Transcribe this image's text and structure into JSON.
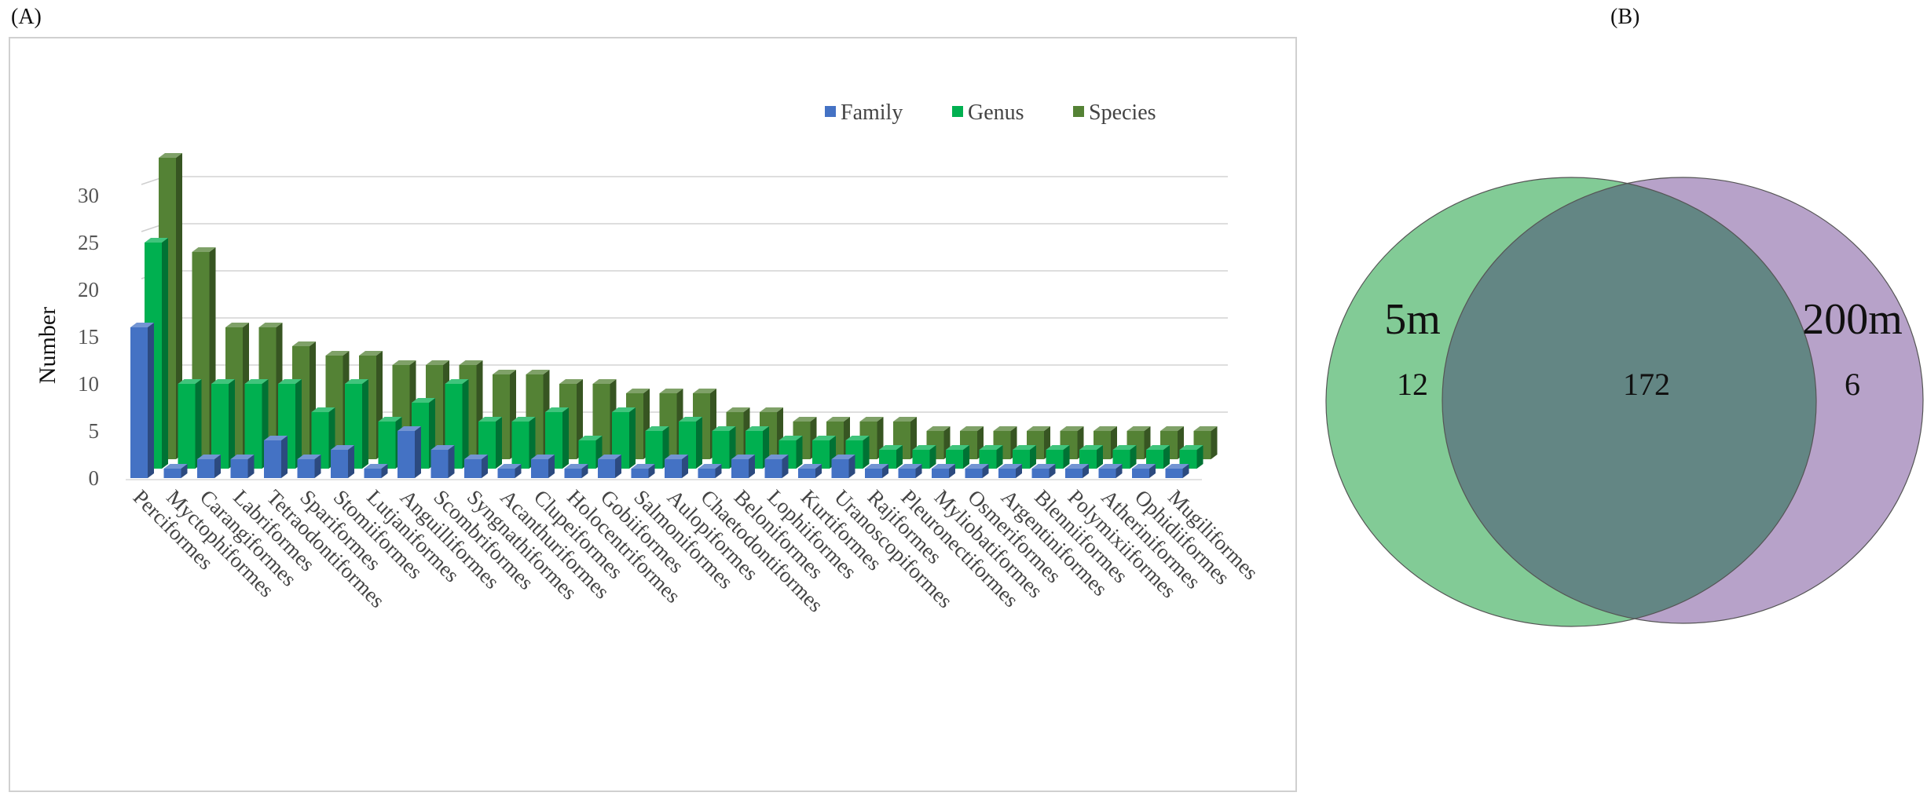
{
  "panels": {
    "a_label": "(A)",
    "b_label": "(B)"
  },
  "chart_data": [
    {
      "type": "bar",
      "ylabel": "Number",
      "ylim": [
        0,
        32
      ],
      "yticks": [
        0,
        5,
        10,
        15,
        20,
        25,
        30
      ],
      "grid": true,
      "legend_position": "top-right",
      "categories": [
        "Perciformes",
        "Myctophiformes",
        "Carangiformes",
        "Labriformes",
        "Tetraodontiformes",
        "Spariformes",
        "Stomiiformes",
        "Lutjaniformes",
        "Anguilliformes",
        "Scombriformes",
        "Syngnathiformes",
        "Acanthuriformes",
        "Clupeiformes",
        "Holocentriformes",
        "Gobiiformes",
        "Salmoniformes",
        "Aulopiformes",
        "Chaetodontiformes",
        "Beloniformes",
        "Lophiiformes",
        "Kurtiformes",
        "Uranoscopiformes",
        "Rajiformes",
        "Pleuronectiformes",
        "Myliobatiformes",
        "Osmeriformes",
        "Argentiniformes",
        "Blenniiformes",
        "Polymixiiformes",
        "Atheriniformes",
        "Ophidiiformes",
        "Mugiliformes"
      ],
      "series": [
        {
          "name": "Family",
          "color": "#4472c4",
          "values": [
            16,
            1,
            2,
            2,
            4,
            2,
            3,
            1,
            5,
            3,
            2,
            1,
            2,
            1,
            2,
            1,
            2,
            1,
            2,
            2,
            1,
            2,
            1,
            1,
            1,
            1,
            1,
            1,
            1,
            1,
            1,
            1
          ]
        },
        {
          "name": "Genus",
          "color": "#00b050",
          "values": [
            24,
            9,
            9,
            9,
            9,
            6,
            9,
            5,
            7,
            9,
            5,
            5,
            6,
            3,
            6,
            4,
            5,
            4,
            4,
            3,
            3,
            3,
            2,
            2,
            2,
            2,
            2,
            2,
            2,
            2,
            2,
            2
          ]
        },
        {
          "name": "Species",
          "color": "#548235",
          "values": [
            32,
            22,
            14,
            14,
            12,
            11,
            11,
            10,
            10,
            10,
            9,
            9,
            8,
            8,
            7,
            7,
            7,
            5,
            5,
            4,
            4,
            4,
            4,
            3,
            3,
            3,
            3,
            3,
            3,
            3,
            3,
            3
          ]
        }
      ]
    },
    {
      "type": "venn",
      "sets": [
        {
          "name": "5m",
          "only": 12,
          "color": "#82cb96"
        },
        {
          "name": "200m",
          "only": 6,
          "color": "#b7a2c9"
        }
      ],
      "intersection": 172,
      "intersection_color": "#638684"
    }
  ]
}
